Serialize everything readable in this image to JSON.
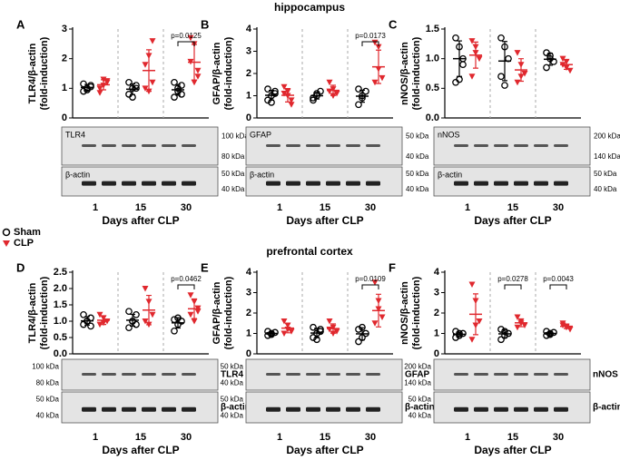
{
  "section_titles": [
    "hippocampus",
    "prefrontal cortex"
  ],
  "groups": [
    {
      "name": "Sham",
      "color": "#000000",
      "marker": "circle"
    },
    {
      "name": "CLP",
      "color": "#e0282e",
      "marker": "triangle"
    }
  ],
  "chart_data": [
    {
      "type": "dot",
      "panel": "A",
      "ylabel": [
        "TLR4/β-actin",
        "(fold-induction)"
      ],
      "xlabel": "Days after CLP",
      "categories": [
        "1",
        "15",
        "30"
      ],
      "ylim": [
        0,
        3
      ],
      "yticks": [
        0,
        1,
        2,
        3
      ],
      "series": [
        {
          "values": [
            [
              0.9,
              1.0,
              1.1,
              1.15,
              0.95,
              1.05
            ],
            [
              0.8,
              1.0,
              1.1,
              1.2,
              0.7,
              1.0
            ],
            [
              0.7,
              1.0,
              1.1,
              1.2,
              0.9,
              0.8
            ]
          ],
          "means": [
            1.03,
            0.97,
            0.95
          ],
          "sds": [
            0.1,
            0.18,
            0.18
          ]
        },
        {
          "values": [
            [
              1.0,
              1.3,
              1.2,
              0.85,
              1.1,
              1.25
            ],
            [
              1.0,
              2.1,
              2.6,
              1.8,
              0.9,
              1.2
            ],
            [
              2.7,
              2.5,
              1.6,
              1.9,
              1.2,
              1.4
            ]
          ],
          "means": [
            1.12,
            1.6,
            1.88
          ],
          "sds": [
            0.17,
            0.7,
            0.6
          ]
        }
      ],
      "annotations": [
        {
          "label": "p=0.0125",
          "category": "30"
        }
      ],
      "blots": [
        {
          "protein": "TLR4",
          "markers": [
            "100 kDa",
            "80 kDa"
          ]
        },
        {
          "protein": "β-actin",
          "markers": [
            "50 kDa",
            "40 kDa"
          ]
        }
      ]
    },
    {
      "type": "dot",
      "panel": "B",
      "ylabel": [
        "GFAP/β-actin",
        "(fold-induction)"
      ],
      "xlabel": "Days after CLP",
      "categories": [
        "1",
        "15",
        "30"
      ],
      "ylim": [
        0,
        4
      ],
      "yticks": [
        0,
        1,
        2,
        3,
        4
      ],
      "series": [
        {
          "values": [
            [
              0.8,
              1.0,
              1.2,
              1.3,
              0.7,
              1.1
            ],
            [
              0.8,
              1.0,
              1.2,
              0.9,
              1.1
            ],
            [
              0.6,
              1.0,
              1.2,
              1.3,
              0.9
            ]
          ],
          "means": [
            1.02,
            1.0,
            0.98
          ],
          "sds": [
            0.22,
            0.15,
            0.27
          ]
        },
        {
          "values": [
            [
              1.4,
              1.2,
              0.6,
              1.1,
              1.0,
              0.8
            ],
            [
              1.6,
              1.3,
              1.1,
              1.2,
              1.0
            ],
            [
              3.4,
              2.2,
              1.8,
              1.6,
              3.2
            ]
          ],
          "means": [
            1.02,
            1.24,
            2.3
          ],
          "sds": [
            0.3,
            0.23,
            0.75
          ]
        }
      ],
      "annotations": [
        {
          "label": "p=0.0173",
          "category": "30"
        }
      ],
      "blots": [
        {
          "protein": "GFAP",
          "markers": [
            "50 kDa",
            "40 kDa"
          ]
        },
        {
          "protein": "β-actin",
          "markers": [
            "50 kDa",
            "40 kDa"
          ]
        }
      ]
    },
    {
      "type": "dot",
      "panel": "C",
      "ylabel": [
        "nNOS/β-actin",
        "(fold-induction)"
      ],
      "xlabel": "Days after CLP",
      "categories": [
        "1",
        "15",
        "30"
      ],
      "ylim": [
        0,
        1.5
      ],
      "yticks": [
        {
          "value": 0,
          "label": "0.0"
        },
        0.5,
        {
          "value": 1,
          "label": "1.0"
        },
        1.5
      ],
      "series": [
        {
          "values": [
            [
              1.35,
              1.2,
              1.0,
              0.6,
              0.65,
              0.9
            ],
            [
              1.35,
              1.2,
              1.0,
              0.7,
              0.55
            ],
            [
              1.1,
              1.0,
              0.95,
              0.85,
              1.05
            ]
          ],
          "means": [
            1.0,
            0.96,
            0.99
          ],
          "sds": [
            0.3,
            0.33,
            0.1
          ]
        },
        {
          "values": [
            [
              1.3,
              1.1,
              1.0,
              0.7,
              1.2
            ],
            [
              1.1,
              0.9,
              0.75,
              0.6,
              0.7
            ],
            [
              1.0,
              0.85,
              0.8,
              0.9,
              0.95
            ]
          ],
          "means": [
            1.06,
            0.81,
            0.9
          ],
          "sds": [
            0.22,
            0.19,
            0.08
          ]
        }
      ],
      "annotations": [],
      "blots": [
        {
          "protein": "nNOS",
          "markers": [
            "200 kDa",
            "140 kDa"
          ]
        },
        {
          "protein": "β-actin",
          "markers": [
            "50 kDa",
            "40 kDa"
          ]
        }
      ]
    },
    {
      "type": "dot",
      "panel": "D",
      "ylabel": [
        "TLR4/β-actin",
        "(fold-induction)"
      ],
      "xlabel": "Days after CLP",
      "categories": [
        "1",
        "15",
        "30"
      ],
      "ylim": [
        0,
        2.5
      ],
      "yticks": [
        {
          "value": 0,
          "label": "0.0"
        },
        0.5,
        {
          "value": 1,
          "label": "1.0"
        },
        1.5,
        {
          "value": 2,
          "label": "2.0"
        },
        2.5
      ],
      "series": [
        {
          "values": [
            [
              0.9,
              1.0,
              1.1,
              1.2,
              1.0,
              0.85
            ],
            [
              0.8,
              1.0,
              1.2,
              1.3,
              1.0,
              0.9
            ],
            [
              0.7,
              0.9,
              1.0,
              1.05,
              1.1
            ]
          ],
          "means": [
            1.01,
            1.03,
            0.95
          ],
          "sds": [
            0.13,
            0.18,
            0.16
          ]
        },
        {
          "values": [
            [
              1.2,
              1.1,
              1.0,
              0.9,
              0.95
            ],
            [
              2.0,
              1.6,
              1.2,
              1.0,
              0.9
            ],
            [
              1.8,
              1.6,
              1.3,
              1.2,
              1.0,
              1.4
            ]
          ],
          "means": [
            1.03,
            1.34,
            1.38
          ],
          "sds": [
            0.13,
            0.45,
            0.3
          ]
        }
      ],
      "annotations": [
        {
          "label": "p=0.0462",
          "category": "30"
        }
      ],
      "blots": [
        {
          "protein": "TLR4",
          "markers": [
            "100 kDa",
            "80 kDa"
          ]
        },
        {
          "protein": "β-actin",
          "markers": [
            "50 kDa",
            "40 kDa"
          ]
        }
      ]
    },
    {
      "type": "dot",
      "panel": "E",
      "ylabel": [
        "GFAP/β-actin",
        "(fold-induction)"
      ],
      "xlabel": "Days after CLP",
      "categories": [
        "1",
        "15",
        "30"
      ],
      "ylim": [
        0,
        4
      ],
      "yticks": [
        0,
        1,
        2,
        3,
        4
      ],
      "series": [
        {
          "values": [
            [
              0.9,
              1.0,
              1.05,
              1.1,
              0.95
            ],
            [
              0.8,
              1.0,
              1.2,
              1.3,
              0.7,
              1.1
            ],
            [
              0.6,
              0.8,
              1.0,
              1.2,
              1.3
            ]
          ],
          "means": [
            1.0,
            1.02,
            0.98
          ],
          "sds": [
            0.08,
            0.23,
            0.3
          ]
        },
        {
          "values": [
            [
              1.6,
              1.4,
              1.1,
              1.0,
              1.2
            ],
            [
              1.6,
              1.3,
              1.1,
              1.2,
              1.0
            ],
            [
              3.5,
              2.6,
              1.8,
              1.5,
              2.2
            ]
          ],
          "means": [
            1.26,
            1.24,
            2.12
          ],
          "sds": [
            0.23,
            0.23,
            0.8
          ]
        }
      ],
      "annotations": [
        {
          "label": "p=0.0109",
          "category": "30"
        }
      ],
      "blots": [
        {
          "protein": "GFAP",
          "markers": [
            "50 kDa",
            "40 kDa"
          ]
        },
        {
          "protein": "β-actin",
          "markers": [
            "50 kDa",
            "40 kDa"
          ]
        }
      ]
    },
    {
      "type": "dot",
      "panel": "F",
      "ylabel": [
        "nNOS/β-actin",
        "(fold-induction)"
      ],
      "xlabel": "Days after CLP",
      "categories": [
        "1",
        "15",
        "30"
      ],
      "ylim": [
        0,
        4
      ],
      "yticks": [
        0,
        1,
        2,
        3,
        4
      ],
      "series": [
        {
          "values": [
            [
              0.8,
              0.9,
              1.0,
              1.1,
              1.0
            ],
            [
              0.7,
              0.9,
              1.0,
              1.2,
              1.1
            ],
            [
              0.9,
              1.0,
              1.05,
              1.1,
              0.95
            ]
          ],
          "means": [
            0.96,
            0.98,
            1.0
          ],
          "sds": [
            0.11,
            0.19,
            0.08
          ]
        },
        {
          "values": [
            [
              3.4,
              2.6,
              1.6,
              0.7,
              1.4
            ],
            [
              1.8,
              1.6,
              1.4,
              1.3,
              1.5
            ],
            [
              1.5,
              1.3,
              1.2,
              1.4,
              1.35
            ]
          ],
          "means": [
            1.94,
            1.52,
            1.35
          ],
          "sds": [
            1.0,
            0.19,
            0.11
          ]
        }
      ],
      "annotations": [
        {
          "label": "p=0.0278",
          "category": "15"
        },
        {
          "label": "p=0.0043",
          "category": "30"
        }
      ],
      "blots": [
        {
          "protein": "nNOS",
          "markers": [
            "200 kDa",
            "140 kDa"
          ]
        },
        {
          "protein": "β-actin",
          "markers": [
            "50 kDa",
            "40 kDa"
          ]
        }
      ]
    }
  ]
}
